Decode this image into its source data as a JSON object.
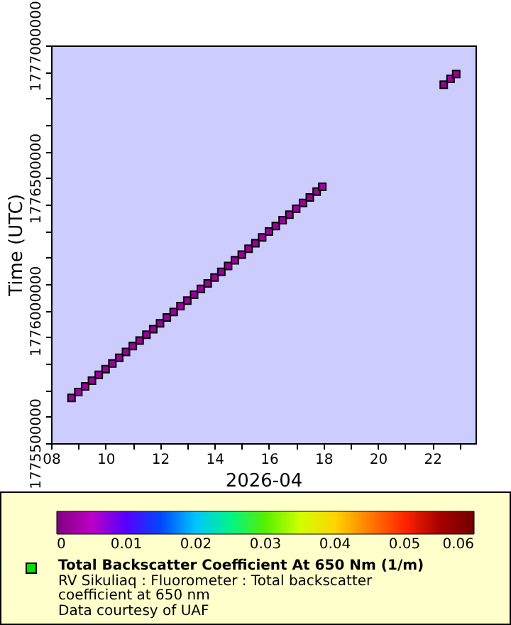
{
  "chart_data": {
    "type": "scatter",
    "xlabel": "2026-04",
    "ylabel": "Time (UTC)",
    "clabel": "Total Backscatter Coefficient At 650 Nm (1/m)",
    "annotations": [
      "RV Sikuliaq : Fluorometer : Total backscatter coefficient at 650 nm",
      "Data courtesy of UAF"
    ],
    "marker": "square",
    "x": [
      "2026-04-08T18:00",
      "2026-04-09T00:00",
      "2026-04-09T06:00",
      "2026-04-09T12:00",
      "2026-04-09T18:00",
      "2026-04-10T00:00",
      "2026-04-10T06:00",
      "2026-04-10T12:00",
      "2026-04-10T18:00",
      "2026-04-11T00:00",
      "2026-04-11T06:00",
      "2026-04-11T12:00",
      "2026-04-11T18:00",
      "2026-04-12T00:00",
      "2026-04-12T06:00",
      "2026-04-12T12:00",
      "2026-04-12T18:00",
      "2026-04-13T00:00",
      "2026-04-13T06:00",
      "2026-04-13T12:00",
      "2026-04-13T18:00",
      "2026-04-14T00:00",
      "2026-04-14T06:00",
      "2026-04-14T12:00",
      "2026-04-14T18:00",
      "2026-04-15T00:00",
      "2026-04-15T06:00",
      "2026-04-15T12:00",
      "2026-04-15T18:00",
      "2026-04-16T00:00",
      "2026-04-16T06:00",
      "2026-04-16T12:00",
      "2026-04-16T18:00",
      "2026-04-17T00:00",
      "2026-04-17T06:00",
      "2026-04-17T12:00",
      "2026-04-17T18:00",
      "2026-04-17T23:00",
      "2026-04-22T10:00",
      "2026-04-22T16:00",
      "2026-04-22T21:00"
    ],
    "values": [
      1775671000,
      1775693000,
      1775714000,
      1775736000,
      1775758000,
      1775779000,
      1775801000,
      1775822000,
      1775844000,
      1775866000,
      1775887000,
      1775909000,
      1775930000,
      1775952000,
      1775974000,
      1775995000,
      1776017000,
      1776038000,
      1776060000,
      1776082000,
      1776103000,
      1776125000,
      1776146000,
      1776168000,
      1776190000,
      1776211000,
      1776233000,
      1776254000,
      1776276000,
      1776298000,
      1776319000,
      1776341000,
      1776362000,
      1776384000,
      1776406000,
      1776427000,
      1776449000,
      1776467000,
      1776852000,
      1776874000,
      1776892000
    ],
    "cvalues": [
      0.002,
      0.002,
      0.002,
      0.002,
      0.002,
      0.002,
      0.002,
      0.002,
      0.002,
      0.002,
      0.002,
      0.002,
      0.002,
      0.002,
      0.002,
      0.002,
      0.002,
      0.002,
      0.002,
      0.002,
      0.002,
      0.002,
      0.002,
      0.002,
      0.002,
      0.002,
      0.002,
      0.002,
      0.002,
      0.002,
      0.002,
      0.002,
      0.002,
      0.002,
      0.002,
      0.002,
      0.002,
      0.002,
      0.002,
      0.002,
      0.002
    ],
    "xlim": [
      "2026-04-08",
      "2026-04-23T14:00"
    ],
    "xticks": [
      {
        "value": "2026-04-08",
        "label": "08"
      },
      {
        "value": "2026-04-09",
        "label": null
      },
      {
        "value": "2026-04-10",
        "label": "10"
      },
      {
        "value": "2026-04-11",
        "label": null
      },
      {
        "value": "2026-04-12",
        "label": "12"
      },
      {
        "value": "2026-04-13",
        "label": null
      },
      {
        "value": "2026-04-14",
        "label": "14"
      },
      {
        "value": "2026-04-15",
        "label": null
      },
      {
        "value": "2026-04-16",
        "label": "16"
      },
      {
        "value": "2026-04-17",
        "label": null
      },
      {
        "value": "2026-04-18",
        "label": "18"
      },
      {
        "value": "2026-04-19",
        "label": null
      },
      {
        "value": "2026-04-20",
        "label": "20"
      },
      {
        "value": "2026-04-21",
        "label": null
      },
      {
        "value": "2026-04-22",
        "label": "22"
      },
      {
        "value": "2026-04-23",
        "label": null
      }
    ],
    "ylim": [
      1775500000,
      1777000000
    ],
    "yticks": [
      1775500000,
      {
        "value": 1775600000,
        "label": null
      },
      {
        "value": 1775700000,
        "label": null
      },
      {
        "value": 1775800000,
        "label": null
      },
      {
        "value": 1775900000,
        "label": null
      },
      1776000000,
      {
        "value": 1776100000,
        "label": null
      },
      {
        "value": 1776200000,
        "label": null
      },
      {
        "value": 1776300000,
        "label": null
      },
      {
        "value": 1776400000,
        "label": null
      },
      1776500000,
      {
        "value": 1776600000,
        "label": null
      },
      {
        "value": 1776700000,
        "label": null
      },
      {
        "value": 1776800000,
        "label": null
      },
      {
        "value": 1776900000,
        "label": null
      },
      1777000000
    ],
    "clim": [
      0,
      0.06
    ],
    "cticks": [
      0,
      0.01,
      0.02,
      0.03,
      0.04,
      0.05,
      0.06
    ],
    "grid": false
  }
}
